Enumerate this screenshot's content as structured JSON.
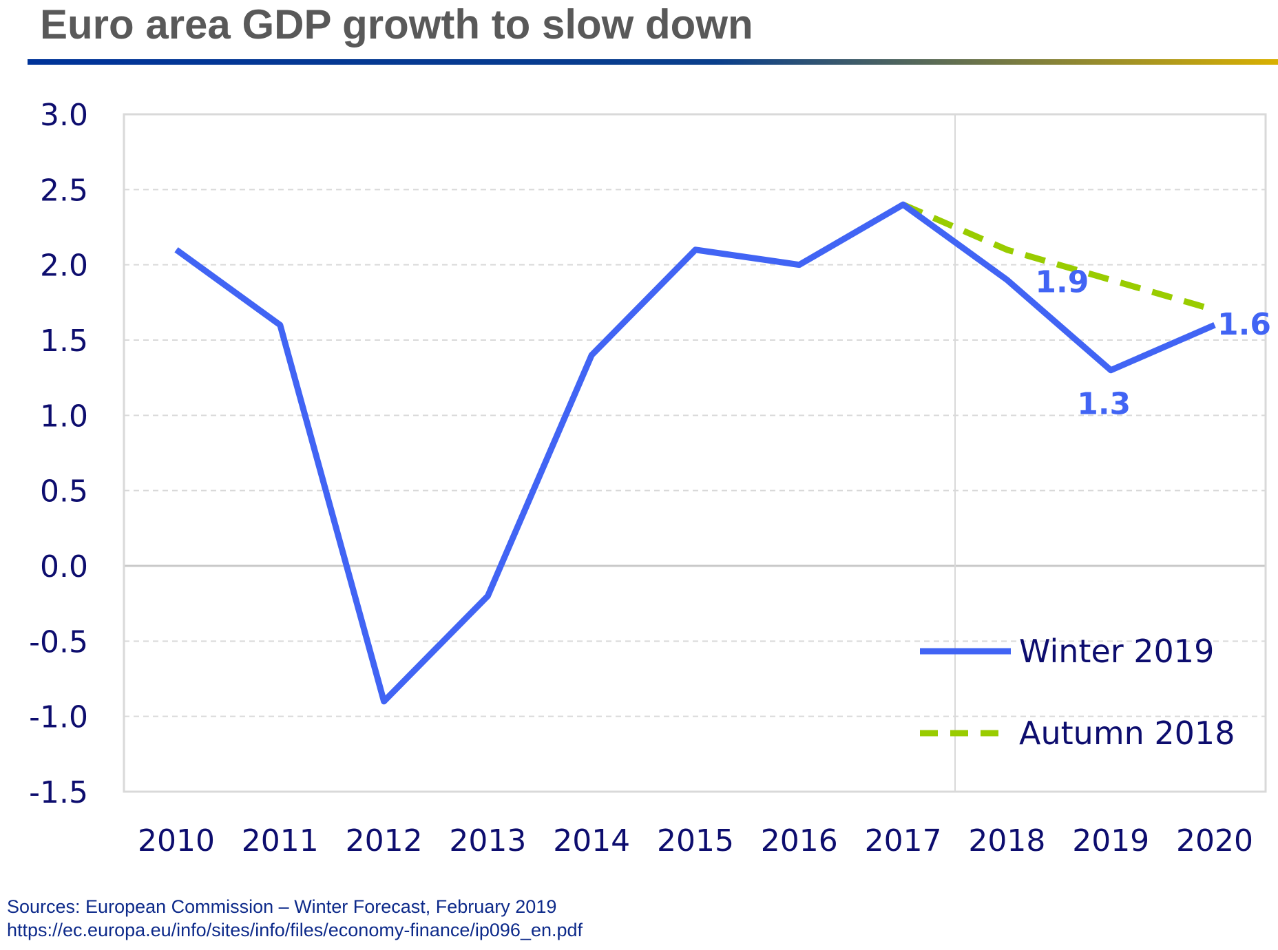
{
  "title": "Euro area GDP growth to slow down",
  "colors": {
    "title_text": "#595959",
    "rule_start": "#003399",
    "rule_mid": "#0a3f8c",
    "rule_end": "#d9b000",
    "axis_text": "#0d0d6e",
    "winter": "#4164f4",
    "autumn": "#99cc00",
    "source_text": "#0d2a8a",
    "grid": "#d9d9d9",
    "frame": "#d9d9d9"
  },
  "chart_data": {
    "type": "line",
    "categories": [
      "2010",
      "2011",
      "2012",
      "2013",
      "2014",
      "2015",
      "2016",
      "2017",
      "2018",
      "2019",
      "2020"
    ],
    "ylim": [
      -1.5,
      3.0
    ],
    "yticks": [
      "-1.5",
      "-1.0",
      "-0.5",
      "0.0",
      "0.5",
      "1.0",
      "1.5",
      "2.0",
      "2.5",
      "3.0"
    ],
    "grid": true,
    "forecast_divider_after": "2017",
    "legend_position": "bottom-right",
    "series": [
      {
        "name": "Winter 2019",
        "style": "solid",
        "values": [
          2.1,
          1.6,
          -0.9,
          -0.2,
          1.4,
          2.1,
          2.0,
          2.4,
          1.9,
          1.3,
          1.6
        ]
      },
      {
        "name": "Autumn 2018",
        "style": "dashed",
        "values": [
          null,
          null,
          null,
          null,
          null,
          null,
          null,
          2.4,
          2.1,
          1.9,
          1.7
        ]
      }
    ],
    "data_labels": [
      {
        "series": 0,
        "category": "2018",
        "text": "1.9"
      },
      {
        "series": 0,
        "category": "2019",
        "text": "1.3"
      },
      {
        "series": 0,
        "category": "2020",
        "text": "1.6"
      }
    ]
  },
  "source": {
    "line1": "Sources: European Commission – Winter Forecast, February 2019",
    "line2": "https://ec.europa.eu/info/sites/info/files/economy-finance/ip096_en.pdf"
  }
}
